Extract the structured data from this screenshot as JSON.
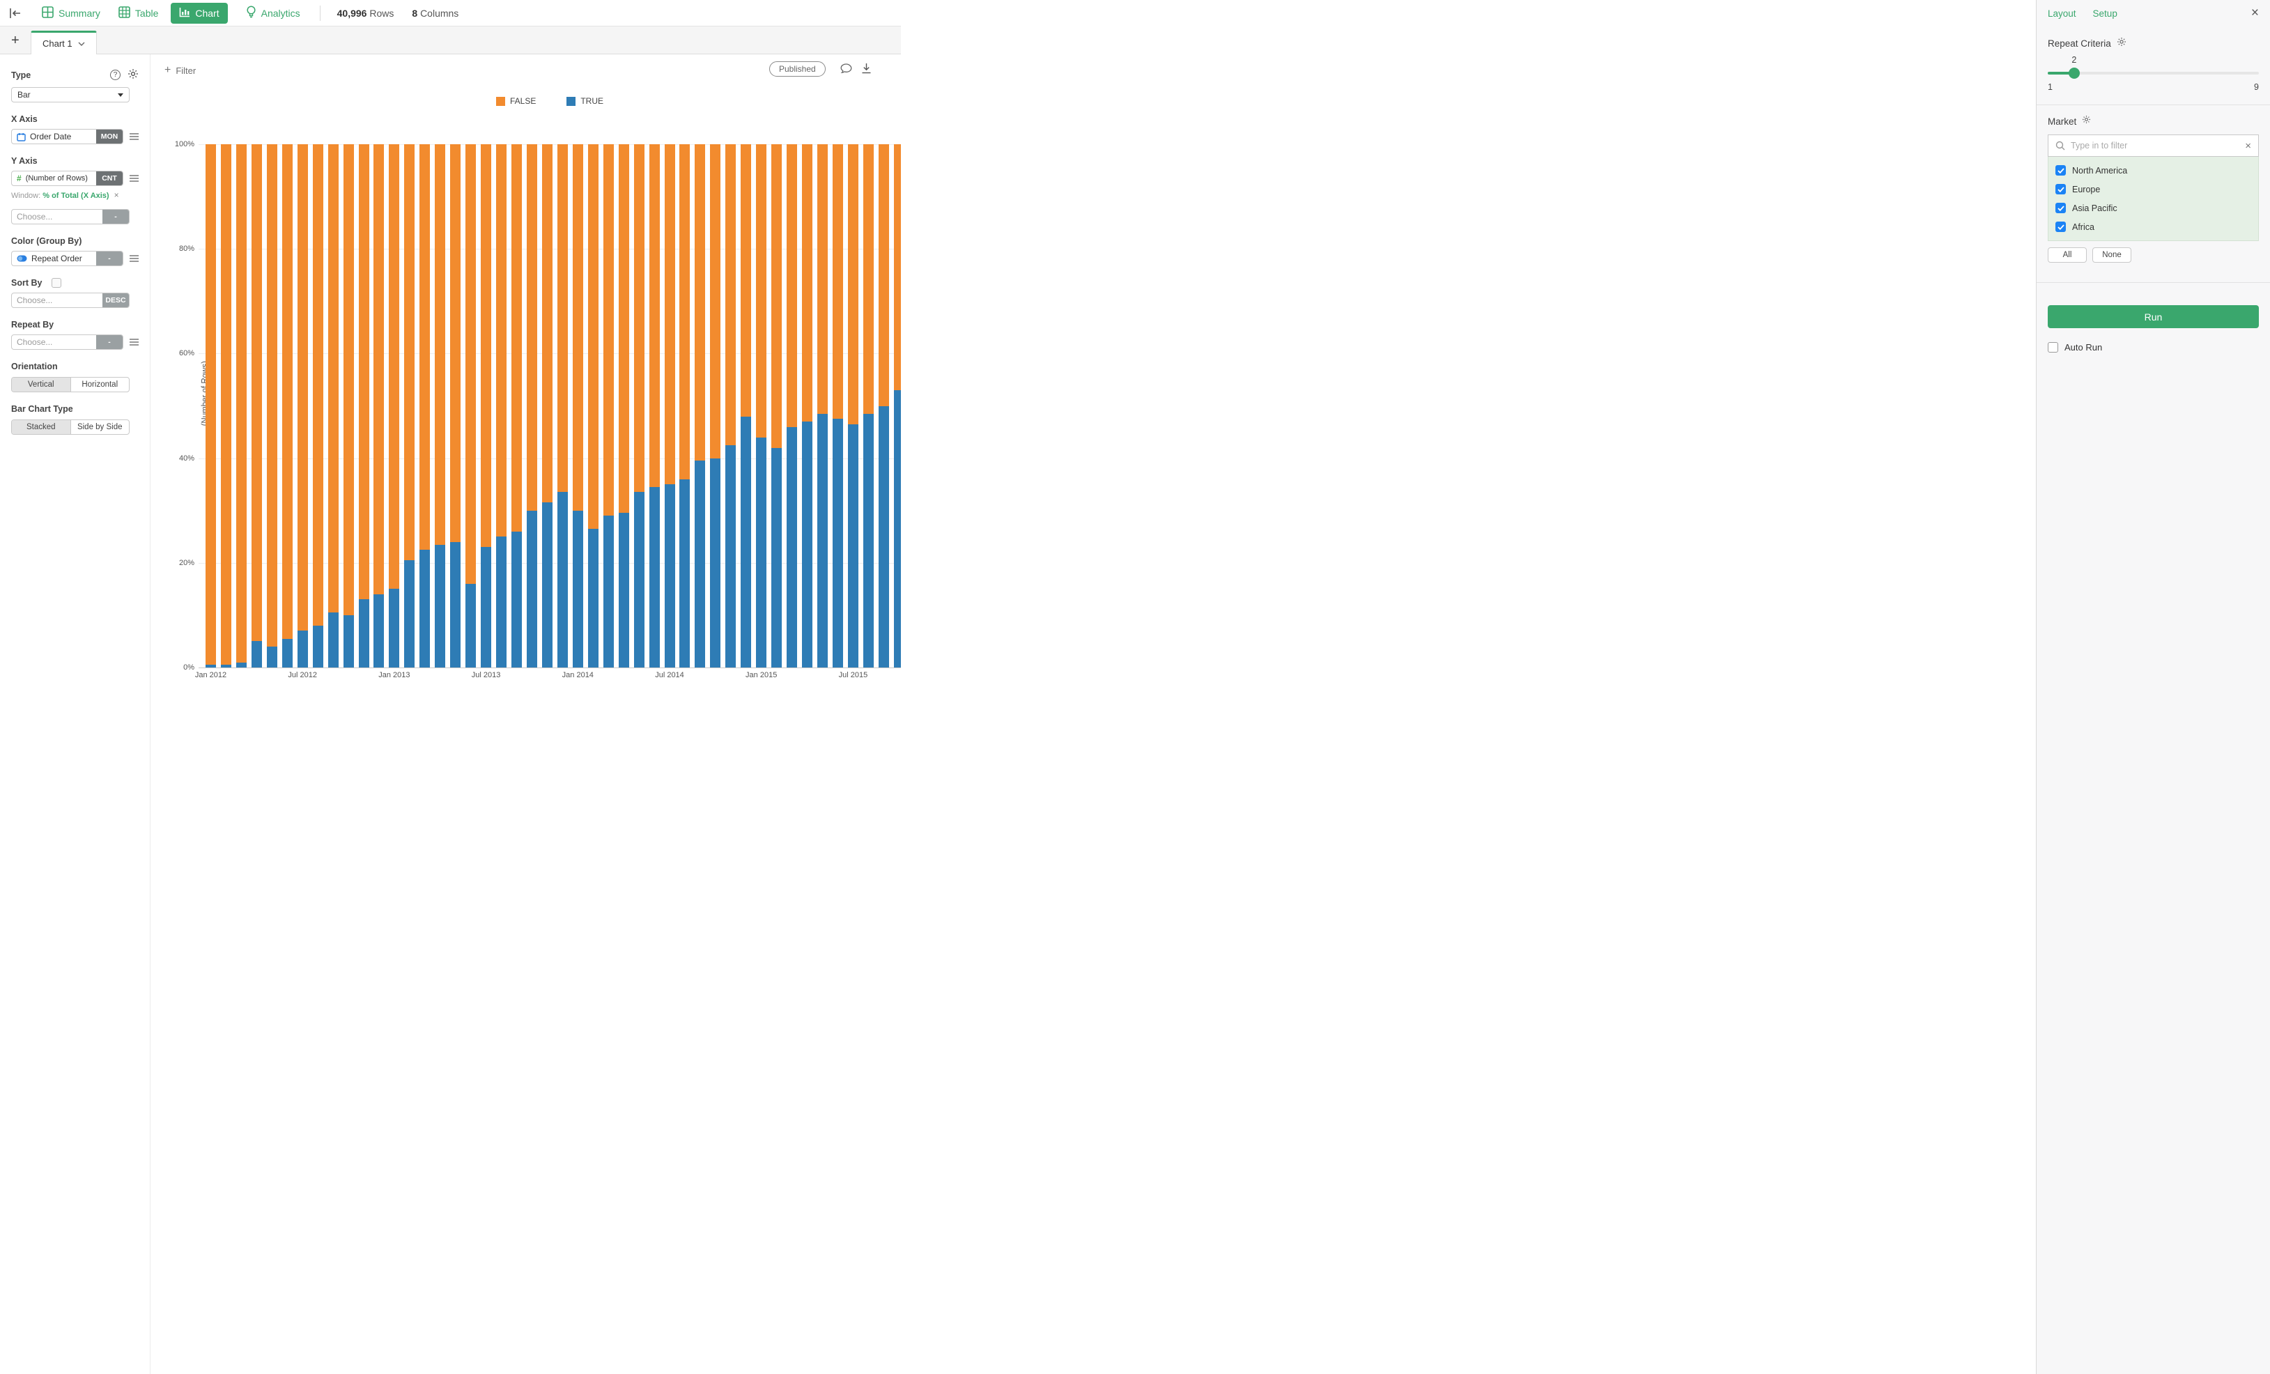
{
  "accent_green": "#3aa76d",
  "topbar": {
    "tabs": [
      {
        "label": "Summary",
        "active": false
      },
      {
        "label": "Table",
        "active": false
      },
      {
        "label": "Chart",
        "active": true
      },
      {
        "label": "Analytics",
        "active": false
      }
    ],
    "rows_count": "40,996",
    "rows_label": "Rows",
    "columns_count": "8",
    "columns_label": "Columns"
  },
  "chart_tabs": {
    "add_label": "+",
    "active_tab": "Chart 1"
  },
  "config": {
    "type": {
      "label": "Type",
      "value": "Bar"
    },
    "x_axis": {
      "label": "X Axis",
      "field": "Order Date",
      "modifier": "MON"
    },
    "y_axis": {
      "label": "Y Axis",
      "field": "(Number of Rows)",
      "modifier": "CNT",
      "window_label": "Window:",
      "window_value": "% of Total (X Axis)",
      "window_remove": "×"
    },
    "y_axis_2": {
      "placeholder": "Choose...",
      "modifier": "-"
    },
    "color": {
      "label": "Color (Group By)",
      "field": "Repeat Order",
      "modifier": "-"
    },
    "sort": {
      "label": "Sort By",
      "placeholder": "Choose...",
      "modifier": "DESC"
    },
    "repeat_by": {
      "label": "Repeat By",
      "placeholder": "Choose...",
      "modifier": "-"
    },
    "orientation": {
      "label": "Orientation",
      "options": [
        "Vertical",
        "Horizontal"
      ],
      "selected": "Vertical"
    },
    "bar_chart_type": {
      "label": "Bar Chart Type",
      "options": [
        "Stacked",
        "Side by Side"
      ],
      "selected": "Stacked"
    }
  },
  "toolbar": {
    "filter_label": "Filter",
    "published_label": "Published"
  },
  "chart_data": {
    "type": "bar",
    "subtype": "stacked-percent",
    "orientation": "vertical",
    "ylabel": "(Number of Rows)",
    "ylim": [
      0,
      100
    ],
    "ytick_labels": [
      "0%",
      "20%",
      "40%",
      "60%",
      "80%",
      "100%"
    ],
    "yticks": [
      0,
      20,
      40,
      60,
      80,
      100
    ],
    "legend_position": "top-center",
    "grid": true,
    "categories": [
      "Jan 2012",
      "Feb 2012",
      "Mar 2012",
      "Apr 2012",
      "May 2012",
      "Jun 2012",
      "Jul 2012",
      "Aug 2012",
      "Sep 2012",
      "Oct 2012",
      "Nov 2012",
      "Dec 2012",
      "Jan 2013",
      "Feb 2013",
      "Mar 2013",
      "Apr 2013",
      "May 2013",
      "Jun 2013",
      "Jul 2013",
      "Aug 2013",
      "Sep 2013",
      "Oct 2013",
      "Nov 2013",
      "Dec 2013",
      "Jan 2014",
      "Feb 2014",
      "Mar 2014",
      "Apr 2014",
      "May 2014",
      "Jun 2014",
      "Jul 2014",
      "Aug 2014",
      "Sep 2014",
      "Oct 2014",
      "Nov 2014",
      "Dec 2014",
      "Jan 2015",
      "Feb 2015",
      "Mar 2015",
      "Apr 2015",
      "May 2015",
      "Jun 2015",
      "Jul 2015",
      "Aug 2015",
      "Sep 2015",
      "Oct 2015"
    ],
    "x_tick_indices": [
      0,
      6,
      12,
      18,
      24,
      30,
      36,
      42
    ],
    "series": [
      {
        "name": "FALSE",
        "color": "#f28b2e",
        "values": [
          99.5,
          99.5,
          99,
          95,
          96,
          94.5,
          93,
          92,
          89.5,
          90,
          87,
          86,
          85,
          79.5,
          77.5,
          76.5,
          76,
          84,
          77,
          75,
          74,
          70,
          68.5,
          66.5,
          70,
          73.5,
          71,
          70.5,
          66.5,
          65.5,
          65,
          64,
          60.5,
          60,
          57.5,
          52,
          56,
          58,
          54,
          53,
          51.5,
          52.5,
          53.5,
          51.5,
          50,
          47
        ]
      },
      {
        "name": "TRUE",
        "color": "#2e7cb5",
        "values": [
          0.5,
          0.5,
          1,
          5,
          4,
          5.5,
          7,
          8,
          10.5,
          10,
          13,
          14,
          15,
          20.5,
          22.5,
          23.5,
          24,
          16,
          23,
          25,
          26,
          30,
          31.5,
          33.5,
          30,
          26.5,
          29,
          29.5,
          33.5,
          34.5,
          35,
          36,
          39.5,
          40,
          42.5,
          48,
          44,
          42,
          46,
          47,
          48.5,
          47.5,
          46.5,
          48.5,
          50,
          53
        ]
      }
    ]
  },
  "panel": {
    "header": {
      "layout": "Layout",
      "setup": "Setup",
      "close": "×"
    },
    "repeat_criteria": {
      "title": "Repeat Criteria",
      "value": 2,
      "min": 1,
      "max": 9
    },
    "market": {
      "title": "Market",
      "search_placeholder": "Type in to filter",
      "clear": "×",
      "options": [
        {
          "label": "North America",
          "checked": true
        },
        {
          "label": "Europe",
          "checked": true
        },
        {
          "label": "Asia Pacific",
          "checked": true
        },
        {
          "label": "Africa",
          "checked": true
        }
      ],
      "all_label": "All",
      "none_label": "None"
    },
    "run_label": "Run",
    "auto_run_label": "Auto Run",
    "checkbox_blue": "#1b83f5"
  }
}
